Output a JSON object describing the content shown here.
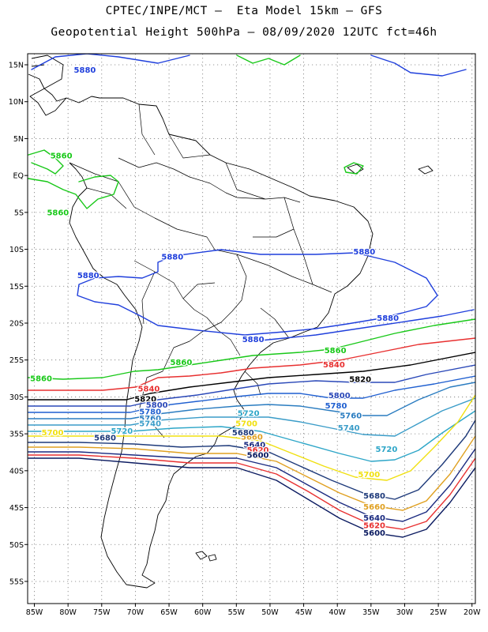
{
  "title": {
    "line1": "CPTEC/INPE/MCT –  Eta Model 15km – GFS",
    "line2": "Geopotential Height 500hPa – 08/09/2020 12UTC fct=46h"
  },
  "map": {
    "lon_range": [
      -86,
      -19.5
    ],
    "lat_range": [
      -58,
      16.5
    ],
    "x_ticks": [
      "85W",
      "80W",
      "75W",
      "70W",
      "65W",
      "60W",
      "55W",
      "50W",
      "45W",
      "40W",
      "35W",
      "30W",
      "25W",
      "20W"
    ],
    "y_ticks": [
      "15N",
      "10N",
      "5N",
      "EQ",
      "5S",
      "10S",
      "15S",
      "20S",
      "25S",
      "30S",
      "35S",
      "40S",
      "45S",
      "50S",
      "55S"
    ],
    "grid": true,
    "colors": {
      "5880": "#1f3fdc",
      "5860": "#18c818",
      "5840": "#e83030",
      "5820": "#000000",
      "5800": "#2a48b8",
      "5780": "#1f5fd0",
      "5760": "#2a7cc0",
      "5740": "#3a9cc8",
      "5720": "#2ea6c8",
      "5700": "#f0e010",
      "5680": "#1e3a7a",
      "5660": "#e0a020",
      "5640": "#1a2a80",
      "5620": "#e83030",
      "5600": "#0a1a60"
    }
  },
  "contour_labels": [
    {
      "text": "5880",
      "level": "5880",
      "lon": -77.5,
      "lat": 14.3
    },
    {
      "text": "5860",
      "level": "5860",
      "lon": -81.0,
      "lat": 2.7
    },
    {
      "text": "5860",
      "level": "5860",
      "lon": -81.5,
      "lat": -5.0
    },
    {
      "text": "5880",
      "level": "5880",
      "lon": -64.5,
      "lat": -11.0
    },
    {
      "text": "5880",
      "level": "5880",
      "lon": -36.0,
      "lat": -10.3
    },
    {
      "text": "5880",
      "level": "5880",
      "lon": -77.0,
      "lat": -13.5
    },
    {
      "text": "5880",
      "level": "5880",
      "lon": -32.5,
      "lat": -19.3
    },
    {
      "text": "5880",
      "level": "5880",
      "lon": -52.5,
      "lat": -22.2
    },
    {
      "text": "5860",
      "level": "5860",
      "lon": -40.3,
      "lat": -23.7
    },
    {
      "text": "5860",
      "level": "5860",
      "lon": -63.2,
      "lat": -25.3
    },
    {
      "text": "5860",
      "level": "5860",
      "lon": -84.0,
      "lat": -27.5
    },
    {
      "text": "5840",
      "level": "5840",
      "lon": -40.5,
      "lat": -25.6
    },
    {
      "text": "5820",
      "level": "5820",
      "lon": -36.6,
      "lat": -27.6
    },
    {
      "text": "5840",
      "level": "5840",
      "lon": -68.0,
      "lat": -28.9
    },
    {
      "text": "5820",
      "level": "5820",
      "lon": -68.5,
      "lat": -30.3
    },
    {
      "text": "5800",
      "level": "5800",
      "lon": -39.7,
      "lat": -29.8
    },
    {
      "text": "5800",
      "level": "5800",
      "lon": -66.8,
      "lat": -31.1
    },
    {
      "text": "5780",
      "level": "5780",
      "lon": -40.2,
      "lat": -31.2
    },
    {
      "text": "5780",
      "level": "5780",
      "lon": -67.8,
      "lat": -32.0
    },
    {
      "text": "5760",
      "level": "5760",
      "lon": -67.8,
      "lat": -32.9
    },
    {
      "text": "5760",
      "level": "5760",
      "lon": -38.0,
      "lat": -32.5
    },
    {
      "text": "5740",
      "level": "5740",
      "lon": -67.8,
      "lat": -33.6
    },
    {
      "text": "5720",
      "level": "5720",
      "lon": -53.2,
      "lat": -32.2
    },
    {
      "text": "5740",
      "level": "5740",
      "lon": -38.3,
      "lat": -34.2
    },
    {
      "text": "5720",
      "level": "5720",
      "lon": -72.0,
      "lat": -34.6
    },
    {
      "text": "5700",
      "level": "5700",
      "lon": -82.3,
      "lat": -34.8
    },
    {
      "text": "5700",
      "level": "5700",
      "lon": -53.5,
      "lat": -33.6
    },
    {
      "text": "5680",
      "level": "5680",
      "lon": -74.5,
      "lat": -35.5
    },
    {
      "text": "5660",
      "level": "5660",
      "lon": -52.7,
      "lat": -35.4
    },
    {
      "text": "5680",
      "level": "5680",
      "lon": -54.0,
      "lat": -34.8
    },
    {
      "text": "5640",
      "level": "5640",
      "lon": -52.3,
      "lat": -36.5
    },
    {
      "text": "5620",
      "level": "5620",
      "lon": -51.8,
      "lat": -37.2
    },
    {
      "text": "5600",
      "level": "5600",
      "lon": -51.8,
      "lat": -37.9
    },
    {
      "text": "5720",
      "level": "5720",
      "lon": -32.7,
      "lat": -37.1
    },
    {
      "text": "5700",
      "level": "5700",
      "lon": -35.3,
      "lat": -40.5
    },
    {
      "text": "5680",
      "level": "5680",
      "lon": -34.5,
      "lat": -43.4
    },
    {
      "text": "5660",
      "level": "5660",
      "lon": -34.5,
      "lat": -44.9
    },
    {
      "text": "5640",
      "level": "5640",
      "lon": -34.5,
      "lat": -46.4
    },
    {
      "text": "5620",
      "level": "5620",
      "lon": -34.5,
      "lat": -47.4
    },
    {
      "text": "5600",
      "level": "5600",
      "lon": -34.5,
      "lat": -48.4
    }
  ]
}
